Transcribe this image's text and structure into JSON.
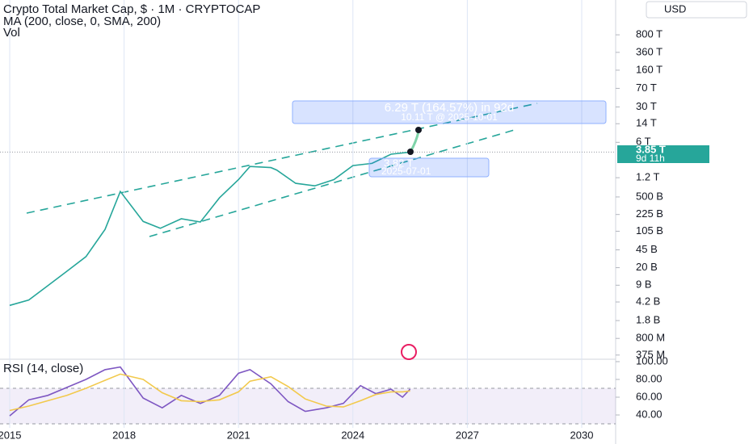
{
  "chart_data": [
    {
      "type": "line",
      "title": "Crypto Total Market Cap, $ · 1M · CRYPTOCAP",
      "indicators": [
        "MA (200, close, 0, SMA, 200)",
        "Vol"
      ],
      "currency": "USD",
      "log_scale": true,
      "grid": true,
      "last_price": {
        "value": 3850000000000,
        "label": "3.85 T"
      },
      "countdown": "9d 11h",
      "projection": {
        "text": "6.29 T (164.57%) in 92d",
        "target": "10.11 T @ 2025-10-01",
        "start_price": "3.82 T",
        "start_date": "2025-07-01"
      },
      "x": [
        2015.0,
        2015.5,
        2016.0,
        2016.5,
        2017.0,
        2017.5,
        2017.9,
        2018.5,
        2018.95,
        2019.5,
        2020.0,
        2020.5,
        2021.0,
        2021.3,
        2021.85,
        2022.0,
        2022.5,
        2023.0,
        2023.5,
        2024.0,
        2024.5,
        2025.0,
        2025.5
      ],
      "series": [
        {
          "name": "Crypto Total Market Cap",
          "color": "#26a69a",
          "values": [
            3600000000,
            4600000000,
            8800000000,
            17000000000,
            33000000000,
            114000000000,
            640000000000,
            164000000000,
            120000000000,
            185000000000,
            160000000000,
            480000000000,
            1100000000000,
            2000000000000,
            1900000000000,
            1700000000000,
            930000000000,
            830000000000,
            1100000000000,
            2080000000000,
            2300000000000,
            3500000000000,
            3850000000000
          ]
        }
      ],
      "xlim": [
        2014.746,
        2030.89
      ],
      "xticks": [
        2015,
        2018,
        2021,
        2024,
        2027,
        2030
      ],
      "ylim": [
        310000000,
        3900000000000000
      ],
      "yticks": [
        {
          "value": 800000000000000,
          "label": "800 T"
        },
        {
          "value": 360000000000000,
          "label": "360 T"
        },
        {
          "value": 160000000000000,
          "label": "160 T"
        },
        {
          "value": 70000000000000,
          "label": "70 T"
        },
        {
          "value": 30000000000000,
          "label": "30 T"
        },
        {
          "value": 14000000000000,
          "label": "14 T"
        },
        {
          "value": 6000000000000,
          "label": "6 T"
        },
        {
          "value": 1200000000000,
          "label": "1.2 T"
        },
        {
          "value": 500000000000,
          "label": "500 B"
        },
        {
          "value": 225000000000,
          "label": "225 B"
        },
        {
          "value": 105000000000,
          "label": "105 B"
        },
        {
          "value": 45000000000,
          "label": "45 B"
        },
        {
          "value": 20000000000,
          "label": "20 B"
        },
        {
          "value": 9000000000,
          "label": "9 B"
        },
        {
          "value": 4200000000,
          "label": "4.2 B"
        },
        {
          "value": 1800000000,
          "label": "1.8 B"
        },
        {
          "value": 800000000,
          "label": "800 M"
        },
        {
          "value": 375000000,
          "label": "375 M"
        }
      ]
    },
    {
      "type": "line",
      "title": "RSI (14, close)",
      "band": [
        30,
        70
      ],
      "x": [
        2015.0,
        2015.5,
        2016.0,
        2016.5,
        2017.0,
        2017.5,
        2017.9,
        2018.5,
        2019.0,
        2019.5,
        2020.0,
        2020.5,
        2021.0,
        2021.3,
        2021.85,
        2022.3,
        2022.75,
        2023.3,
        2023.75,
        2024.2,
        2024.6,
        2025.0,
        2025.3,
        2025.5
      ],
      "series": [
        {
          "name": "RSI",
          "color": "#7e57c2",
          "values": [
            39,
            57,
            62,
            71,
            80,
            91,
            94,
            59,
            48,
            62,
            53,
            62,
            87,
            91,
            75,
            55,
            44,
            48,
            53,
            73,
            64,
            69,
            60,
            69
          ]
        },
        {
          "name": "RSI MA",
          "color": "#f2c94c",
          "values": [
            45,
            50,
            56,
            62,
            70,
            79,
            86,
            80,
            65,
            56,
            55,
            57,
            66,
            78,
            83,
            72,
            58,
            50,
            49,
            56,
            63,
            66,
            66,
            67
          ]
        }
      ],
      "xlim": [
        2014.746,
        2030.89
      ],
      "ylim": [
        25.5,
        102.7
      ],
      "yticks": [
        {
          "value": 100,
          "label": "100.00"
        },
        {
          "value": 80,
          "label": "80.00"
        },
        {
          "value": 60,
          "label": "60.00"
        },
        {
          "value": 40,
          "label": "40.00"
        }
      ]
    }
  ]
}
